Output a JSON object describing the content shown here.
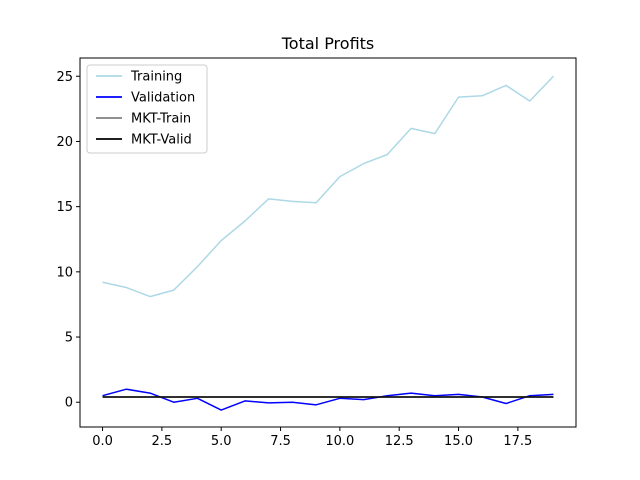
{
  "chart_data": {
    "type": "line",
    "title": "Total Profits",
    "xlabel": "",
    "ylabel": "",
    "xlim": [
      -0.95,
      19.95
    ],
    "ylim": [
      -1.9,
      26.4
    ],
    "xticks": [
      0,
      2.5,
      5,
      7.5,
      10,
      12.5,
      15,
      17.5
    ],
    "xtick_labels": [
      "0.0",
      "2.5",
      "5.0",
      "7.5",
      "10.0",
      "12.5",
      "15.0",
      "17.5"
    ],
    "yticks": [
      0,
      5,
      10,
      15,
      20,
      25
    ],
    "ytick_labels": [
      "0",
      "5",
      "10",
      "15",
      "20",
      "25"
    ],
    "grid": false,
    "legend_position": "upper-left",
    "x": [
      0,
      1,
      2,
      3,
      4,
      5,
      6,
      7,
      8,
      9,
      10,
      11,
      12,
      13,
      14,
      15,
      16,
      17,
      18,
      19
    ],
    "series": [
      {
        "name": "Training",
        "color": "#add8e6",
        "values": [
          9.2,
          8.8,
          8.1,
          8.6,
          10.4,
          12.4,
          13.9,
          15.6,
          15.4,
          15.3,
          17.3,
          18.3,
          19.0,
          21.0,
          20.6,
          23.4,
          23.5,
          24.3,
          23.1,
          25.0
        ]
      },
      {
        "name": "Validation",
        "color": "#0000ff",
        "values": [
          0.5,
          1.0,
          0.7,
          0.0,
          0.3,
          -0.6,
          0.1,
          -0.05,
          0.0,
          -0.2,
          0.3,
          0.2,
          0.5,
          0.7,
          0.5,
          0.6,
          0.4,
          -0.1,
          0.5,
          0.6
        ]
      },
      {
        "name": "MKT-Train",
        "color": "#808080",
        "values": [
          0.4,
          0.4,
          0.4,
          0.4,
          0.4,
          0.4,
          0.4,
          0.4,
          0.4,
          0.4,
          0.4,
          0.4,
          0.4,
          0.4,
          0.4,
          0.4,
          0.4,
          0.4,
          0.4,
          0.4
        ]
      },
      {
        "name": "MKT-Valid",
        "color": "#000000",
        "values": [
          0.4,
          0.4,
          0.4,
          0.4,
          0.4,
          0.4,
          0.4,
          0.4,
          0.4,
          0.4,
          0.4,
          0.4,
          0.4,
          0.4,
          0.4,
          0.4,
          0.4,
          0.4,
          0.4,
          0.4
        ]
      }
    ]
  }
}
